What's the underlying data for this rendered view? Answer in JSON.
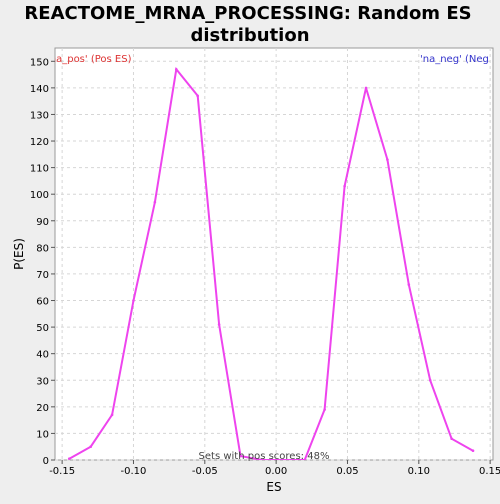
{
  "chart_data": {
    "type": "line",
    "title_line1": "REACTOME_MRNA_PROCESSING: Random ES",
    "title_line2": "distribution",
    "xlabel": "ES",
    "ylabel": "P(ES)",
    "xlim": [
      -0.155,
      0.152
    ],
    "ylim": [
      0,
      155
    ],
    "x_ticks": [
      -0.15,
      -0.1,
      -0.05,
      0.0,
      0.05,
      0.1,
      0.15
    ],
    "x_tick_labels": [
      "-0.15",
      "-0.10",
      "-0.05",
      "0.00",
      "0.05",
      "0.10",
      "0.15"
    ],
    "y_ticks": [
      0,
      10,
      20,
      30,
      40,
      50,
      60,
      70,
      80,
      90,
      100,
      110,
      120,
      130,
      140,
      150
    ],
    "grid": true,
    "line_color": "#ee44ee",
    "series": [
      {
        "x": [
          -0.145,
          -0.13,
          -0.115,
          -0.1,
          -0.085,
          -0.07,
          -0.055,
          -0.04,
          -0.025,
          -0.01,
          0.005,
          0.02,
          0.034,
          0.048,
          0.063,
          0.078,
          0.093,
          0.108,
          0.123,
          0.138
        ],
        "values": [
          0.5,
          5,
          17,
          60,
          97,
          147,
          137,
          51,
          1.5,
          0,
          0,
          0,
          19,
          103,
          140,
          113,
          66,
          30,
          8,
          3.5
        ]
      }
    ],
    "annotations": {
      "pos_label": "'na_pos' (Pos ES)",
      "neg_label": "'na_neg' (Neg ES)",
      "bottom_note": "Sets with pos scores: 48%"
    }
  }
}
